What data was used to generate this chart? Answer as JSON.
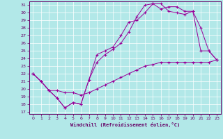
{
  "xlabel": "Windchill (Refroidissement éolien,°C)",
  "xlim": [
    -0.5,
    23.5
  ],
  "ylim": [
    16.7,
    31.5
  ],
  "yticks": [
    17,
    18,
    19,
    20,
    21,
    22,
    23,
    24,
    25,
    26,
    27,
    28,
    29,
    30,
    31
  ],
  "xticks": [
    0,
    1,
    2,
    3,
    4,
    5,
    6,
    7,
    8,
    9,
    10,
    11,
    12,
    13,
    14,
    15,
    16,
    17,
    18,
    19,
    20,
    21,
    22,
    23
  ],
  "bg_color": "#b2e8e8",
  "line_color": "#990099",
  "grid_color": "#ffffff",
  "line1_x": [
    0,
    1,
    2,
    3,
    4,
    5,
    6,
    7,
    8,
    9,
    10,
    11,
    12,
    13,
    14,
    15,
    16,
    17,
    18,
    19,
    20,
    21,
    22,
    23
  ],
  "line1_y": [
    22.0,
    21.0,
    19.8,
    18.8,
    17.5,
    18.2,
    18.0,
    21.2,
    24.5,
    25.0,
    25.5,
    27.0,
    28.8,
    29.0,
    30.0,
    31.2,
    31.2,
    30.2,
    30.0,
    29.8,
    30.2,
    25.0,
    25.0,
    23.8
  ],
  "line2_x": [
    0,
    1,
    2,
    3,
    4,
    5,
    6,
    7,
    8,
    9,
    10,
    11,
    12,
    13,
    14,
    15,
    16,
    17,
    18,
    19,
    20,
    21,
    22,
    23
  ],
  "line2_y": [
    22.0,
    21.0,
    19.8,
    18.8,
    17.5,
    18.2,
    18.0,
    21.2,
    23.5,
    24.5,
    25.2,
    26.0,
    27.5,
    29.5,
    31.0,
    31.2,
    30.5,
    30.8,
    30.8,
    30.2,
    30.2,
    28.0,
    25.0,
    23.8
  ],
  "line3_x": [
    0,
    1,
    2,
    3,
    4,
    5,
    6,
    7,
    8,
    9,
    10,
    11,
    12,
    13,
    14,
    15,
    16,
    17,
    18,
    19,
    20,
    21,
    22,
    23
  ],
  "line3_y": [
    22.0,
    21.0,
    19.8,
    19.8,
    19.5,
    19.5,
    19.2,
    19.5,
    20.0,
    20.5,
    21.0,
    21.5,
    22.0,
    22.5,
    23.0,
    23.2,
    23.5,
    23.5,
    23.5,
    23.5,
    23.5,
    23.5,
    23.5,
    23.8
  ]
}
